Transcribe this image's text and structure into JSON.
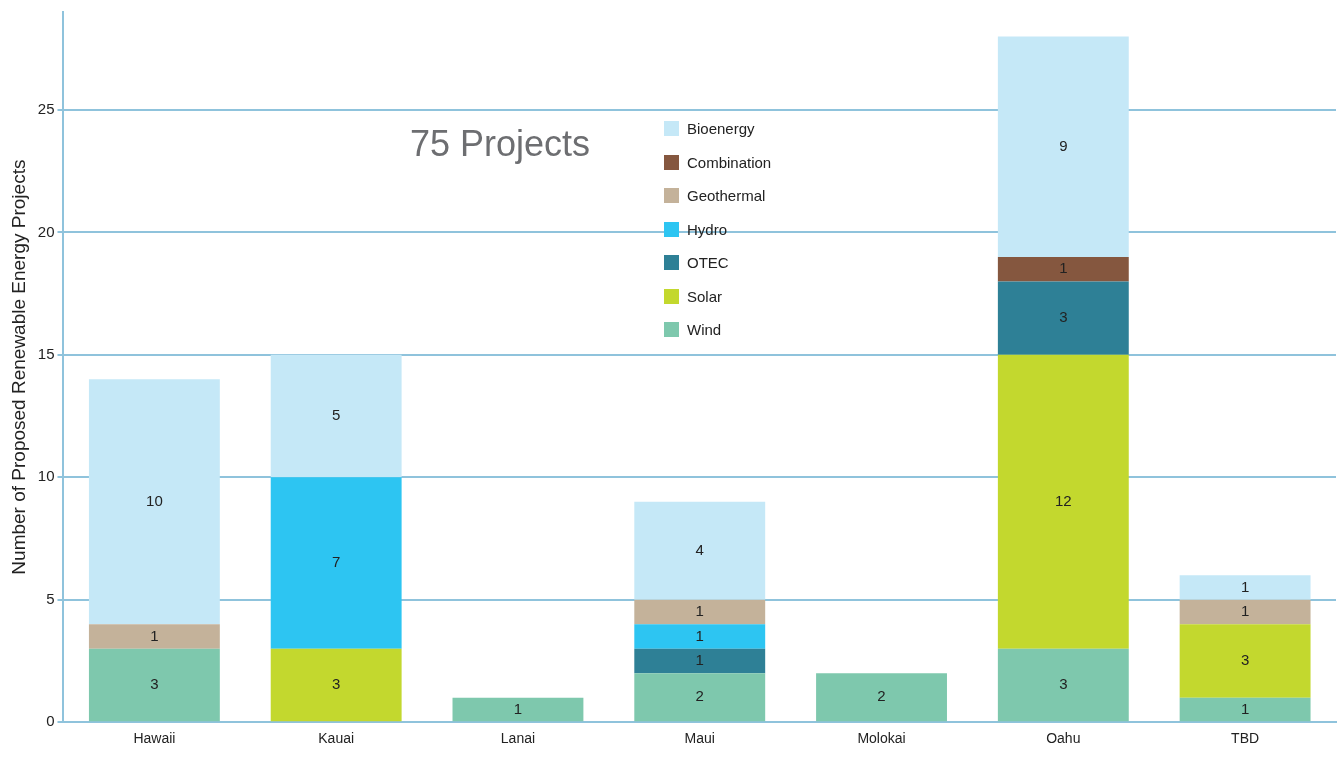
{
  "chart_data": {
    "type": "bar",
    "stacked": true,
    "ylabel": "Number of Proposed Renewable Energy Projects",
    "annotations": [
      "75 Projects"
    ],
    "categories": [
      "Hawaii",
      "Kauai",
      "Lanai",
      "Maui",
      "Molokai",
      "Oahu",
      "TBD"
    ],
    "series": [
      {
        "name": "Wind",
        "color": "#7ec8ad",
        "values": [
          3,
          null,
          1,
          2,
          2,
          3,
          1
        ]
      },
      {
        "name": "Solar",
        "color": "#c3d82e",
        "values": [
          null,
          3,
          null,
          null,
          null,
          12,
          3
        ]
      },
      {
        "name": "OTEC",
        "color": "#2e8096",
        "values": [
          null,
          null,
          null,
          1,
          null,
          3,
          null
        ]
      },
      {
        "name": "Hydro",
        "color": "#2dc5f2",
        "values": [
          null,
          7,
          null,
          1,
          null,
          null,
          null
        ]
      },
      {
        "name": "Geothermal",
        "color": "#c4b29a",
        "values": [
          1,
          null,
          null,
          1,
          null,
          null,
          1
        ]
      },
      {
        "name": "Combination",
        "color": "#85573f",
        "values": [
          null,
          null,
          null,
          null,
          null,
          1,
          null
        ]
      },
      {
        "name": "Bioenergy",
        "color": "#c5e8f7",
        "values": [
          10,
          5,
          null,
          4,
          null,
          9,
          1
        ]
      }
    ],
    "ylim": [
      0,
      29
    ],
    "yticks": [
      0,
      5,
      10,
      15,
      20,
      25
    ],
    "grid": "y",
    "legend": "top",
    "data_labels": true
  }
}
